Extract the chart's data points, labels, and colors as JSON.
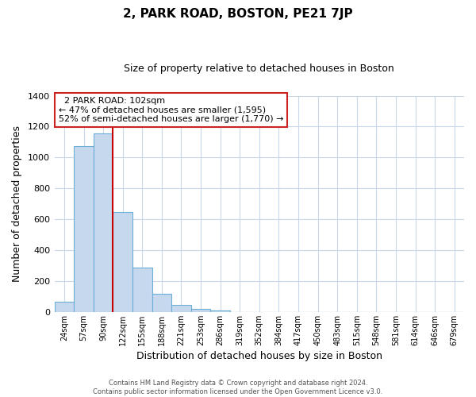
{
  "title": "2, PARK ROAD, BOSTON, PE21 7JP",
  "subtitle": "Size of property relative to detached houses in Boston",
  "xlabel": "Distribution of detached houses by size in Boston",
  "ylabel": "Number of detached properties",
  "bar_values": [
    65,
    1075,
    1155,
    645,
    285,
    120,
    48,
    20,
    10,
    0,
    0,
    0,
    0,
    0,
    0,
    0,
    0,
    0,
    0,
    0,
    0
  ],
  "bar_labels": [
    "24sqm",
    "57sqm",
    "90sqm",
    "122sqm",
    "155sqm",
    "188sqm",
    "221sqm",
    "253sqm",
    "286sqm",
    "319sqm",
    "352sqm",
    "384sqm",
    "417sqm",
    "450sqm",
    "483sqm",
    "515sqm",
    "548sqm",
    "581sqm",
    "614sqm",
    "646sqm",
    "679sqm"
  ],
  "bar_color": "#c5d8ee",
  "bar_edge_color": "#6baed6",
  "vline_color": "#cc0000",
  "vline_pos": 2.5,
  "ylim": [
    0,
    1400
  ],
  "yticks": [
    0,
    200,
    400,
    600,
    800,
    1000,
    1200,
    1400
  ],
  "annotation_title": "2 PARK ROAD: 102sqm",
  "annotation_line1": "← 47% of detached houses are smaller (1,595)",
  "annotation_line2": "52% of semi-detached houses are larger (1,770) →",
  "footer_line1": "Contains HM Land Registry data © Crown copyright and database right 2024.",
  "footer_line2": "Contains public sector information licensed under the Open Government Licence v3.0.",
  "background_color": "#ffffff",
  "grid_color": "#c8d8e8"
}
